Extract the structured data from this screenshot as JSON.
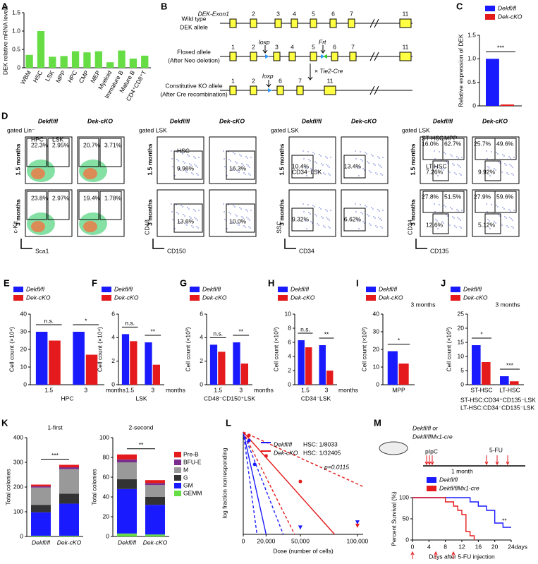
{
  "panels": {
    "A": {
      "label": "A",
      "type": "bar",
      "ylabel": "DEK relative mRNA levels",
      "categories": [
        "WBM",
        "HSC",
        "LSK",
        "MPP",
        "HPC",
        "CMP",
        "MEP",
        "Myeloid",
        "Immature B",
        "Mature B",
        "CD4⁺CD8⁺T"
      ],
      "values": [
        0.35,
        1.0,
        0.3,
        0.32,
        0.45,
        0.42,
        0.45,
        0.15,
        0.47,
        0.25,
        0.33
      ],
      "color": "#66dd44",
      "ylim": [
        0,
        1.5
      ],
      "yticks": [
        0,
        0.5,
        {
          "value": 1,
          "label": "1.0"
        },
        1.5
      ]
    },
    "B": {
      "label": "B",
      "alleles": [
        {
          "name": "Wild type",
          "sub": "DEK allele",
          "exon_label": "DEK-Exon1",
          "exons": [
            "2",
            "3",
            "4",
            "5",
            "6",
            "7",
            "11"
          ]
        },
        {
          "name": "Floxed allele",
          "sub": "(After Neo deletion)",
          "exons": [
            "1",
            "2",
            "3",
            "4",
            "5",
            "6",
            "7",
            "11"
          ]
        },
        {
          "name": "Constitutive KO allele",
          "sub": "(After Cre recombination)",
          "exons": [
            "1",
            "2",
            "6",
            "7",
            "11"
          ]
        }
      ],
      "loxp": [
        "loxp",
        "loxp"
      ],
      "frt": "Frt",
      "cross": "× Tie2-Cre"
    },
    "C": {
      "label": "C",
      "type": "bar",
      "ylabel": "Relative expression of DEK",
      "categories": [
        null
      ],
      "series": [
        {
          "name": "Dekfl/fl",
          "color": "#1a1aff",
          "values": [
            1.0
          ]
        },
        {
          "name": "Dek-cKO",
          "color": "#e41a1c",
          "values": [
            0.03
          ]
        }
      ],
      "ylim": [
        0,
        1.5
      ],
      "yticks": [
        0,
        0.5,
        {
          "value": 1,
          "label": "1.0"
        },
        1.5
      ],
      "significance": [
        "***"
      ]
    },
    "D": {
      "label": "D",
      "groups": [
        {
          "gate": "gated Lin⁻",
          "columns": [
            "Dekfl/fl",
            "Dek-cKO"
          ],
          "rows": [
            "1.5 months",
            "3 months"
          ],
          "yaxis": "c-Kit",
          "xaxis": "Sca1",
          "gates": [
            "HPC",
            "LSK"
          ],
          "percents": [
            [
              [
                "22.3%",
                "2.95%"
              ],
              [
                "20.7%",
                "3.71%"
              ]
            ],
            [
              [
                "23.8%",
                "2.97%"
              ],
              [
                "19.4%",
                "1.78%"
              ]
            ]
          ]
        },
        {
          "gate": "gated LSK",
          "columns": [
            "Dekfl/fl",
            "Dek-cKO"
          ],
          "rows": [
            "1.5 months",
            "3 months"
          ],
          "yaxis": "CD48",
          "xaxis": "CD150",
          "gates": [
            "HSC"
          ],
          "percents": [
            [
              [
                "9.96%"
              ],
              [
                "16.3%"
              ]
            ],
            [
              [
                "13.6%"
              ],
              [
                "10.0%"
              ]
            ]
          ]
        },
        {
          "gate": "gated LSK",
          "columns": [
            "Dekfl/fl",
            "Dek-cKO"
          ],
          "rows": [
            "1.5 months",
            "3 months"
          ],
          "yaxis": "SSC",
          "xaxis": "CD34",
          "gates": [
            "CD34⁻LSK"
          ],
          "percents": [
            [
              [
                "10.4%"
              ],
              [
                "13.4%"
              ]
            ],
            [
              [
                "9.32%"
              ],
              [
                "6.62%"
              ]
            ]
          ]
        },
        {
          "gate": "gated LSK",
          "columns": [
            "Dekfl/fl",
            "Dek-cKO"
          ],
          "rows": [
            "1.5 months",
            "3 months"
          ],
          "yaxis": "CD34",
          "xaxis": "CD135",
          "gates": [
            "ST-HSC",
            "MPP",
            "LT-HSC"
          ],
          "percents": [
            [
              [
                "16.0%",
                "62.7%",
                "7.26%"
              ],
              [
                "25.7%",
                "49.6%",
                "9.92%"
              ]
            ],
            [
              [
                "27.8%",
                "51.5%",
                "12.6%"
              ],
              [
                "27.9%",
                "59.6%",
                "5.12%"
              ]
            ]
          ]
        }
      ]
    },
    "E": {
      "label": "E",
      "type": "bar",
      "ylabel": "Cell count (×10⁴)",
      "categories": [
        "1.5",
        "3"
      ],
      "unit": "months",
      "xlabel": "HPC",
      "series": [
        {
          "name": "Dekfl/fl",
          "color": "#1a1aff",
          "values": [
            30,
            30
          ]
        },
        {
          "name": "Dek-cKO",
          "color": "#e41a1c",
          "values": [
            25,
            17
          ]
        }
      ],
      "ylim": [
        0,
        40
      ],
      "yticks": [
        0,
        10,
        20,
        30,
        40
      ],
      "significance": [
        "n.s.",
        "*"
      ]
    },
    "F": {
      "label": "F",
      "type": "bar",
      "ylabel": "Cell count (×10⁴)",
      "categories": [
        "1.5",
        "3"
      ],
      "unit": "months",
      "xlabel": "LSK",
      "series": [
        {
          "name": "Dekfl/fl",
          "color": "#1a1aff",
          "values": [
            4.3,
            3.6
          ]
        },
        {
          "name": "Dek-cKO",
          "color": "#e41a1c",
          "values": [
            3.7,
            1.7
          ]
        }
      ],
      "ylim": [
        0,
        6
      ],
      "yticks": [
        0,
        2,
        4,
        6
      ],
      "significance": [
        "n.s.",
        "**"
      ]
    },
    "G": {
      "label": "G",
      "type": "bar",
      "ylabel": "Cell count (×10³)",
      "categories": [
        "1.5",
        "3"
      ],
      "unit": "months",
      "xlabel": "CD48⁻CD150⁺LSK",
      "series": [
        {
          "name": "Dekfl/fl",
          "color": "#1a1aff",
          "values": [
            3.4,
            3.6
          ]
        },
        {
          "name": "Dek-cKO",
          "color": "#e41a1c",
          "values": [
            2.8,
            1.8
          ]
        }
      ],
      "ylim": [
        0,
        6
      ],
      "yticks": [
        0,
        2,
        4,
        6
      ],
      "significance": [
        "n.s.",
        "**"
      ]
    },
    "H": {
      "label": "H",
      "type": "bar",
      "ylabel": "Cell count (×10³)",
      "categories": [
        "1.5",
        "3"
      ],
      "unit": "months",
      "xlabel": "CD34⁻LSK",
      "series": [
        {
          "name": "Dekfl/fl",
          "color": "#1a1aff",
          "values": [
            6.3,
            5.6
          ]
        },
        {
          "name": "Dek-cKO",
          "color": "#e41a1c",
          "values": [
            5.3,
            2.0
          ]
        }
      ],
      "ylim": [
        0,
        10
      ],
      "yticks": [
        0,
        2,
        4,
        6,
        8,
        10
      ],
      "significance": [
        "n.s.",
        "**"
      ]
    },
    "I": {
      "label": "I",
      "type": "bar",
      "ylabel": "Cell count (×10³)",
      "categories": [
        null
      ],
      "note": "3 months",
      "xlabel": "MPP",
      "series": [
        {
          "name": "Dekfl/fl",
          "color": "#1a1aff",
          "values": [
            19
          ]
        },
        {
          "name": "Dek-cKO",
          "color": "#e41a1c",
          "values": [
            12
          ]
        }
      ],
      "ylim": [
        0,
        40
      ],
      "yticks": [
        0,
        10,
        20,
        30,
        40
      ],
      "significance": [
        "*"
      ]
    },
    "J": {
      "label": "J",
      "type": "bar",
      "ylabel": "Cell count (×10³)",
      "categories": [
        "ST-HSC",
        "LT-HSC"
      ],
      "note": "3 months",
      "footnotes": [
        "ST-HSC:CD34⁺CD135⁻LSK",
        "LT-HSC:CD34⁻CD135⁻LSK"
      ],
      "series": [
        {
          "name": "Dekfl/fl",
          "color": "#1a1aff",
          "values": [
            14,
            3
          ]
        },
        {
          "name": "Dek-cKO",
          "color": "#e41a1c",
          "values": [
            8,
            1.2
          ]
        }
      ],
      "ylim": [
        0,
        25
      ],
      "yticks": [
        0,
        5,
        10,
        15,
        20,
        25
      ],
      "significance": [
        "*",
        "***"
      ]
    },
    "K": {
      "label": "K",
      "charts": [
        {
          "type": "stacked_bar",
          "title": "1-first",
          "ylabel": "Total colonies",
          "categories": [
            "Dekfl/fl",
            "Dek-cKO"
          ],
          "ylim": [
            0,
            400
          ],
          "yticks": [
            0,
            100,
            200,
            300,
            400
          ],
          "significance": "***",
          "series": [
            {
              "name": "GEMM",
              "color": "#66dd44",
              "values": [
                3,
                3
              ]
            },
            {
              "name": "GM",
              "color": "#1a1aff",
              "values": [
                95,
                130
              ]
            },
            {
              "name": "G",
              "color": "#333333",
              "values": [
                30,
                40
              ]
            },
            {
              "name": "M",
              "color": "#999999",
              "values": [
                70,
                100
              ]
            },
            {
              "name": "BFU-E",
              "color": "#7b2d8e",
              "values": [
                5,
                7
              ]
            },
            {
              "name": "Pre-B",
              "color": "#e41a1c",
              "values": [
                7,
                10
              ]
            }
          ]
        },
        {
          "type": "stacked_bar",
          "title": "2-second",
          "ylabel": "Total colonies",
          "categories": [
            "Dekfl/fl",
            "Dek-cKO"
          ],
          "ylim": [
            0,
            100
          ],
          "yticks": [
            0,
            20,
            40,
            60,
            80,
            100
          ],
          "significance": "**",
          "series": [
            {
              "color": "#66dd44",
              "values": [
                3,
                2
              ]
            },
            {
              "color": "#1a1aff",
              "values": [
                45,
                30
              ]
            },
            {
              "color": "#333333",
              "values": [
                10,
                8
              ]
            },
            {
              "color": "#999999",
              "values": [
                17,
                12
              ]
            },
            {
              "color": "#7b2d8e",
              "values": [
                3,
                2
              ]
            },
            {
              "color": "#e41a1c",
              "values": [
                5,
                3
              ]
            }
          ]
        }
      ]
    },
    "L": {
      "label": "L",
      "type": "line",
      "ylabel": "log fraction nonresponding",
      "xlabel": "Dose (number of cells)",
      "xlim": [
        0,
        105000
      ],
      "xticks": [
        0,
        {
          "value": 20000,
          "label": "20,000"
        },
        {
          "value": 50000,
          "label": "50,000"
        },
        {
          "value": 100000,
          "label": "100,000"
        }
      ],
      "ylim": [
        -6,
        0
      ],
      "annotations": [
        "HSC: 1/8033",
        "HSC: 1/32405",
        "p=0.0115"
      ],
      "series": [
        {
          "name": "Dekfl/fl",
          "color": "#1a1aff",
          "mode": "line",
          "x": [
            0,
            20000
          ],
          "values": [
            0,
            -6
          ]
        },
        {
          "color": "#1a1aff",
          "mode": "dashed",
          "x": [
            0,
            12000
          ],
          "values": [
            0,
            -6
          ]
        },
        {
          "color": "#1a1aff",
          "mode": "dashed",
          "x": [
            0,
            35000
          ],
          "values": [
            0,
            -6
          ]
        },
        {
          "name": "Dek-cKO",
          "color": "#e41a1c",
          "mode": "line",
          "x": [
            0,
            80000
          ],
          "values": [
            0,
            -6
          ]
        },
        {
          "color": "#e41a1c",
          "mode": "dashed",
          "x": [
            0,
            45000
          ],
          "values": [
            0,
            -6
          ]
        },
        {
          "color": "#e41a1c",
          "mode": "dashed",
          "x": [
            0,
            105000
          ],
          "values": [
            0,
            -3.2
          ]
        },
        {
          "color": "#1a1aff",
          "mode": "points",
          "x": [
            5000,
            10000
          ],
          "values": [
            -0.5,
            -1.9
          ]
        },
        {
          "color": "#1a1aff",
          "mode": "triangles",
          "x": [
            50000,
            100000
          ],
          "values": [
            -5.6,
            -5.3
          ]
        },
        {
          "color": "#e41a1c",
          "mode": "points",
          "x": [
            5000,
            20000,
            50000
          ],
          "values": [
            -0.2,
            -1.4,
            -2.9
          ]
        },
        {
          "color": "#e41a1c",
          "mode": "triangles",
          "x": [
            100000
          ],
          "values": [
            -5.5
          ]
        }
      ]
    },
    "M": {
      "label": "M",
      "scheme": {
        "mice": [
          "Dekfl/fl or",
          "Dekfl/flMx1-cre"
        ],
        "pipc": "pIpC",
        "interval": "1 month",
        "drug": "5-FU"
      },
      "chart": {
        "type": "line",
        "step": true,
        "ylabel": "Percent Survival (%)",
        "xlabel": "Days after 5-FU injection",
        "unit": "days",
        "xlim": [
          0,
          24
        ],
        "xticks": [
          0,
          4,
          8,
          12,
          16,
          20,
          24
        ],
        "ylim": [
          0,
          100
        ],
        "yticks": [
          0,
          50,
          100
        ],
        "significance": "**",
        "series": [
          {
            "name": "Dekfl/fl",
            "color": "#1a1aff",
            "x": [
              0,
              12,
              14,
              16,
              18,
              20,
              22,
              24
            ],
            "values": [
              100,
              100,
              90,
              80,
              70,
              40,
              30,
              30
            ]
          },
          {
            "name": "Dekfl/flMx1-cre",
            "color": "#e41a1c",
            "x": [
              0,
              7,
              8,
              10,
              11,
              12,
              13,
              14,
              15
            ],
            "values": [
              100,
              100,
              90,
              80,
              70,
              60,
              20,
              10,
              0
            ]
          }
        ]
      }
    }
  }
}
